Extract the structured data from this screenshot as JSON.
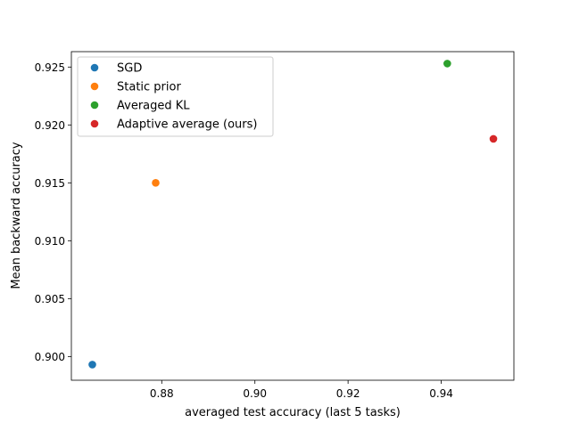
{
  "chart_data": {
    "type": "scatter",
    "title": "",
    "xlabel": "averaged test accuracy (last 5 tasks)",
    "ylabel": "Mean backward accuracy",
    "xlim": [
      0.8606,
      0.9556
    ],
    "ylim": [
      0.89795,
      0.92633
    ],
    "xticks": [
      0.88,
      0.9,
      0.92,
      0.94
    ],
    "xtick_labels": [
      "0.88",
      "0.90",
      "0.92",
      "0.94"
    ],
    "yticks": [
      0.9,
      0.905,
      0.91,
      0.915,
      0.92,
      0.925
    ],
    "ytick_labels": [
      "0.900",
      "0.905",
      "0.910",
      "0.915",
      "0.920",
      "0.925"
    ],
    "grid": false,
    "legend_position": "upper-left",
    "series": [
      {
        "name": "SGD",
        "color": "#1f77b4",
        "x": [
          0.8651
        ],
        "y": [
          0.8993
        ]
      },
      {
        "name": "Static prior",
        "color": "#ff7f0e",
        "x": [
          0.8787
        ],
        "y": [
          0.915
        ]
      },
      {
        "name": "Averaged KL",
        "color": "#2ca02c",
        "x": [
          0.9413
        ],
        "y": [
          0.9253
        ]
      },
      {
        "name": "Adaptive average (ours)",
        "color": "#d62728",
        "x": [
          0.9512
        ],
        "y": [
          0.9188
        ]
      }
    ]
  }
}
